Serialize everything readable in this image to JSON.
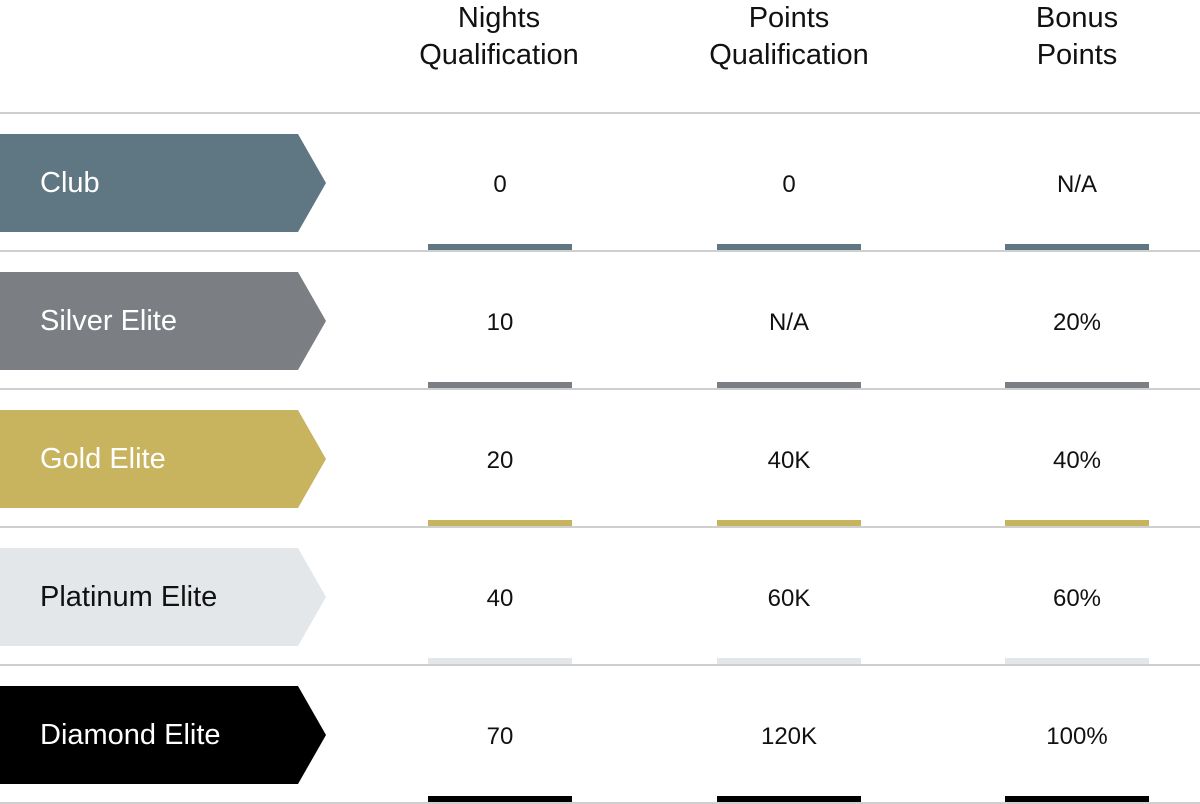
{
  "columns": [
    "Nights\nQualification",
    "Points\nQualification",
    "Bonus\nPoints"
  ],
  "rows": [
    {
      "tier": "Club",
      "color": "#5f7683",
      "text_color": "#ffffff",
      "values": [
        "0",
        "0",
        "N/A"
      ]
    },
    {
      "tier": "Silver Elite",
      "color": "#7b7f83",
      "text_color": "#ffffff",
      "values": [
        "10",
        "N/A",
        "20%"
      ]
    },
    {
      "tier": "Gold Elite",
      "color": "#c8b35f",
      "text_color": "#ffffff",
      "values": [
        "20",
        "40K",
        "40%"
      ]
    },
    {
      "tier": "Platinum Elite",
      "color": "#e3e7ea",
      "text_color": "#111111",
      "values": [
        "40",
        "60K",
        "60%"
      ]
    },
    {
      "tier": "Diamond Elite",
      "color": "#000000",
      "text_color": "#ffffff",
      "values": [
        "70",
        "120K",
        "100%"
      ]
    }
  ]
}
